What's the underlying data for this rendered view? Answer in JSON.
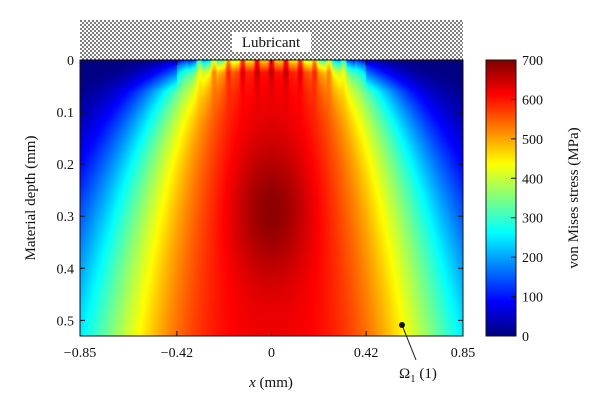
{
  "chart_data": {
    "type": "heatmap",
    "title": "",
    "xlabel_var": "x",
    "xlabel_unit": " (mm)",
    "ylabel": "Material depth (mm)",
    "x_ticks": [
      "−0.85",
      "−0.42",
      "0",
      "0.42",
      "0.85"
    ],
    "x_tick_values": [
      -0.85,
      -0.42,
      0,
      0.42,
      0.85
    ],
    "y_ticks": [
      "0",
      "0.1",
      "0.2",
      "0.3",
      "0.4",
      "0.5"
    ],
    "y_tick_values": [
      0,
      0.1,
      0.2,
      0.3,
      0.4,
      0.5
    ],
    "xlim": [
      -0.85,
      0.85
    ],
    "ylim": [
      0,
      0.53
    ],
    "y_inverted": true,
    "colorbar": {
      "label": "von Mises stress (MPa)",
      "range": [
        0,
        700
      ],
      "ticks": [
        "0",
        "100",
        "200",
        "300",
        "400",
        "500",
        "600",
        "700"
      ],
      "tick_values": [
        0,
        100,
        200,
        300,
        400,
        500,
        600,
        700
      ],
      "colormap": "jet"
    },
    "field_features": {
      "max_region_center": {
        "x": 0,
        "depth": 0.29,
        "stress": 690
      },
      "contact_half_width": 0.42,
      "surface_ripples": {
        "count": 11,
        "x_from": -0.32,
        "x_to": 0.32
      }
    },
    "lubricant_label": "Lubricant",
    "annotation": {
      "symbol": "Ω",
      "subscript": "1",
      "suffix": " (1)",
      "point": {
        "x": 0.58,
        "depth": 0.51
      }
    }
  }
}
